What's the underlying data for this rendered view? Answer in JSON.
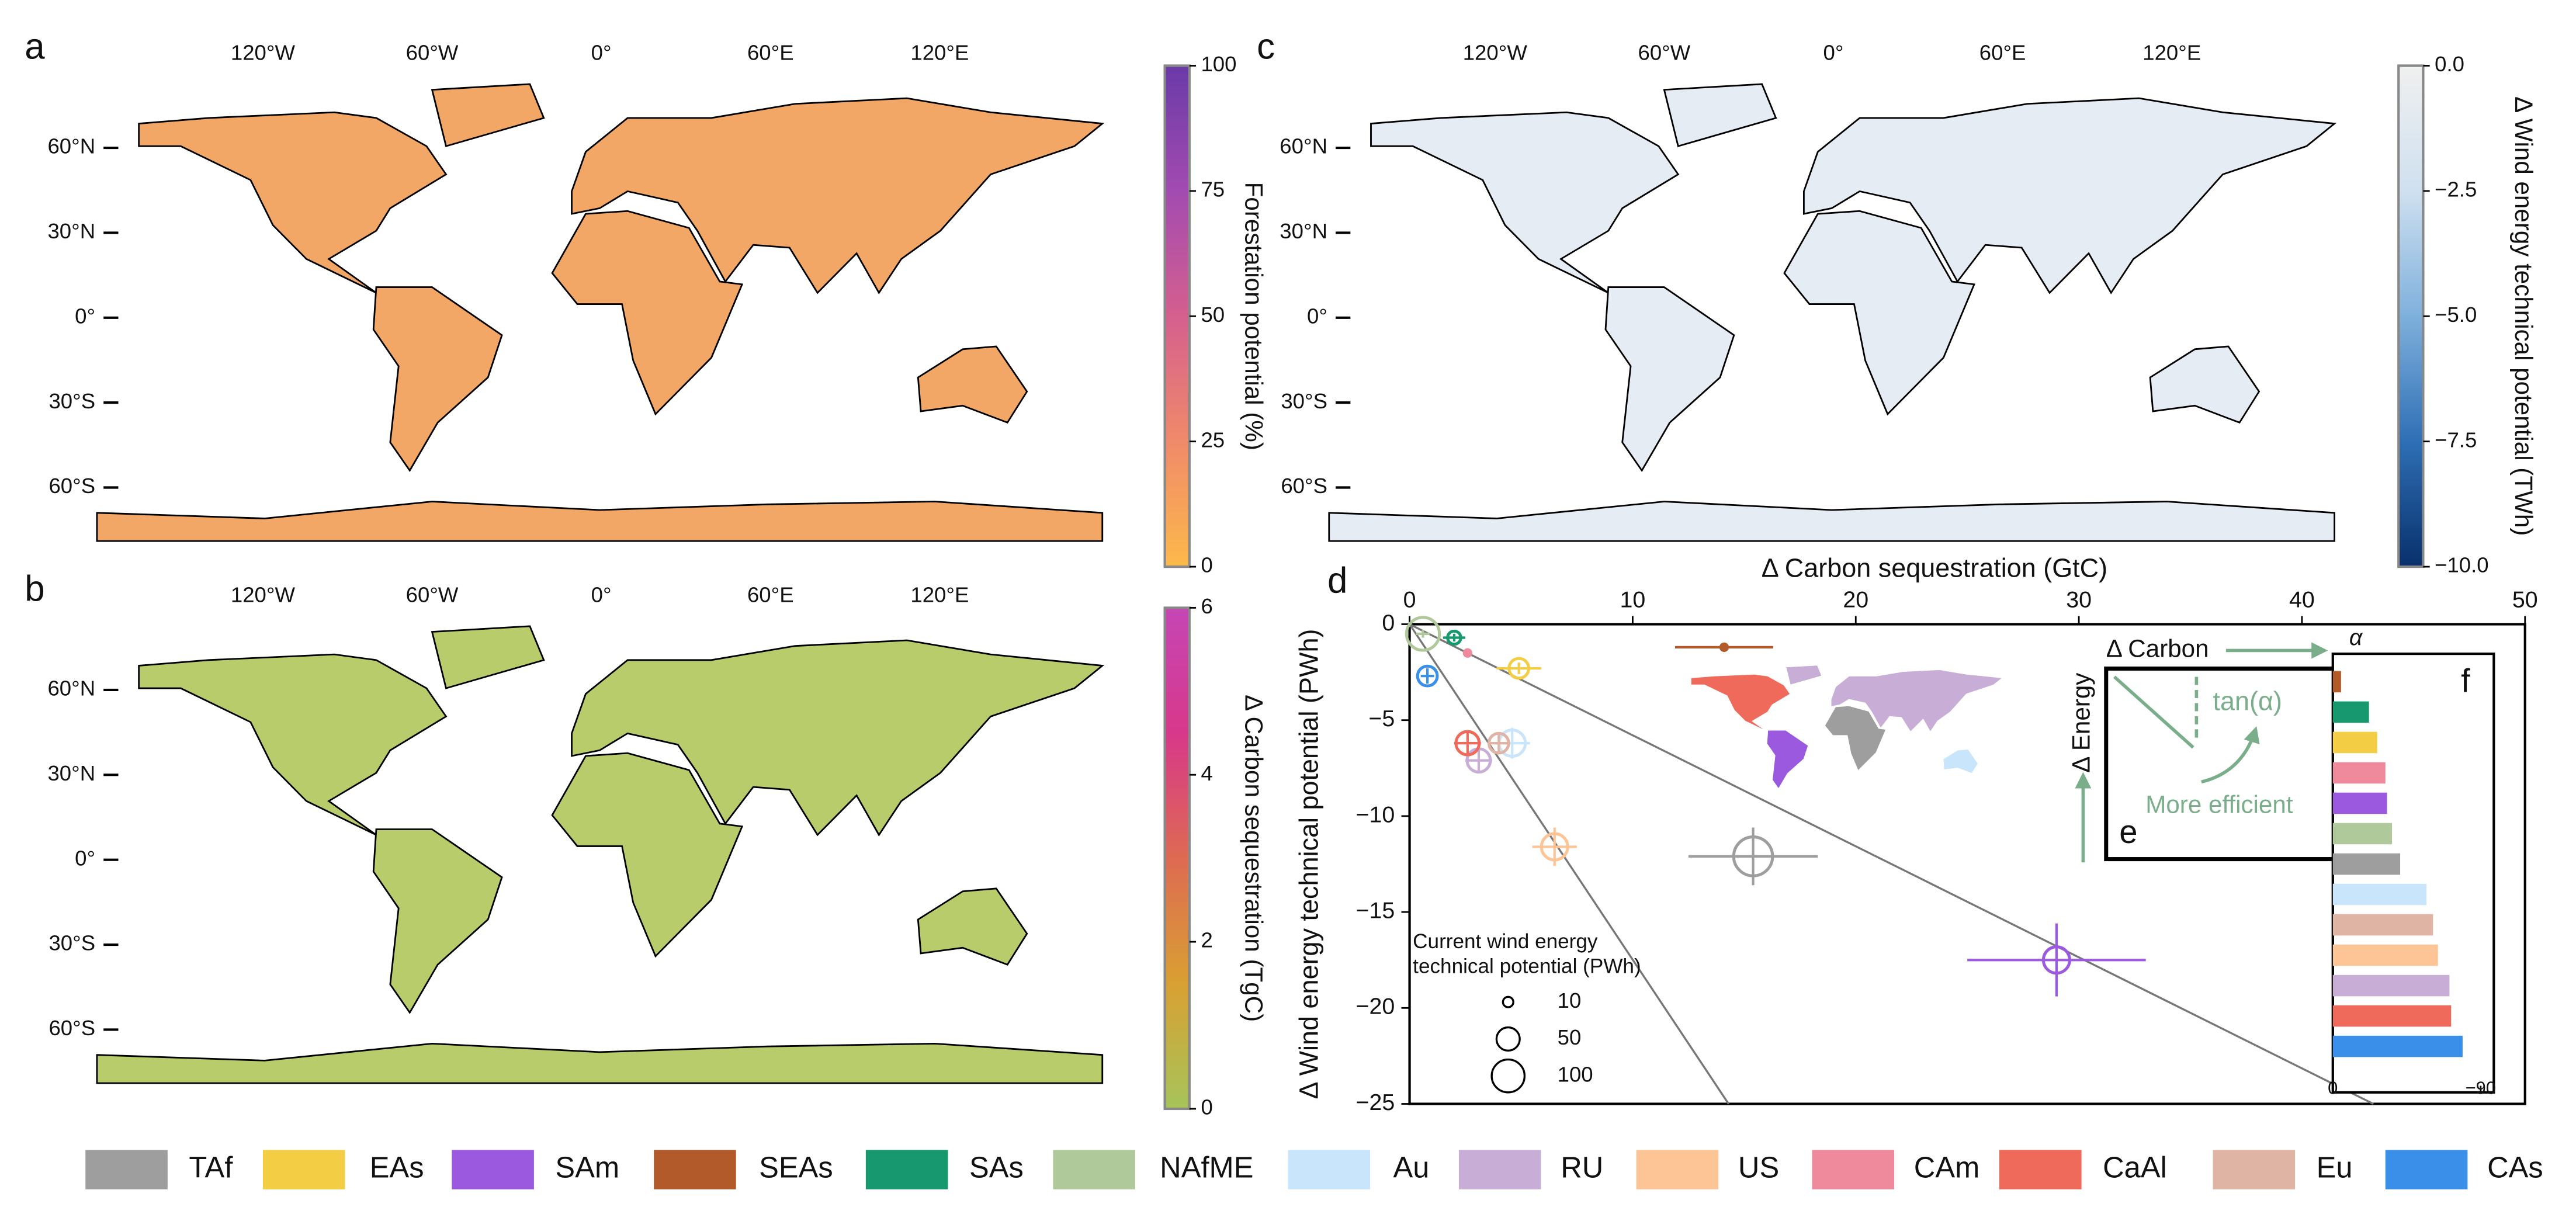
{
  "maps": [
    {
      "label": "a",
      "lon_ticks": [
        "120°W",
        "60°W",
        "0°",
        "60°E",
        "120°E"
      ],
      "lat_ticks": [
        "60°N",
        "30°N",
        "0°",
        "30°S",
        "60°S"
      ],
      "fill": "#f2a766",
      "colorbar": {
        "label": "Forestation potential (%)",
        "lim": [
          0,
          100
        ],
        "ticks": [
          0,
          25,
          50,
          75,
          100
        ],
        "colors": [
          "#fdb94a",
          "#f08a6a",
          "#d55f8e",
          "#a24bb0",
          "#6a3aa8"
        ]
      }
    },
    {
      "label": "b",
      "lon_ticks": [
        "120°W",
        "60°W",
        "0°",
        "60°E",
        "120°E"
      ],
      "lat_ticks": [
        "60°N",
        "30°N",
        "0°",
        "30°S",
        "60°S"
      ],
      "fill": "#b8cc6c",
      "colorbar": {
        "label": "Δ Carbon sequestration (TgC)",
        "lim": [
          0,
          6
        ],
        "ticks": [
          0,
          2,
          4,
          6
        ],
        "colors": [
          "#a6c45a",
          "#d9a032",
          "#de6a52",
          "#d8388a",
          "#c546b5"
        ]
      }
    },
    {
      "label": "c",
      "lon_ticks": [
        "120°W",
        "60°W",
        "0°",
        "60°E",
        "120°E"
      ],
      "lat_ticks": [
        "60°N",
        "30°N",
        "0°",
        "30°S",
        "60°S"
      ],
      "fill": "#e6ecf3",
      "colorbar": {
        "label": "Δ Wind energy technical potential (TWh)",
        "lim": [
          -10,
          0
        ],
        "ticks": [
          {
            "value": 0,
            "label": "0.0"
          },
          {
            "value": -2.5,
            "label": "−2.5"
          },
          {
            "value": -5,
            "label": "−5.0"
          },
          {
            "value": -7.5,
            "label": "−7.5"
          },
          {
            "value": -10,
            "label": "−10.0"
          }
        ],
        "colors": [
          "#08306b",
          "#2f6fb5",
          "#7fb0dc",
          "#cfe0f0",
          "#f0f0f0"
        ]
      }
    }
  ],
  "chart_data": [
    {
      "type": "scatter",
      "label": "d",
      "x_label": "Δ Carbon sequestration (GtC)",
      "y_label": "Δ Wind energy technical potential (PWh)",
      "xlim": [
        0,
        50
      ],
      "xticks": [
        0,
        10,
        20,
        30,
        40,
        50
      ],
      "ylim": [
        -25,
        0
      ],
      "yticks": [
        0,
        {
          "value": -5,
          "label": "−5"
        },
        {
          "value": -10,
          "label": "−10"
        },
        {
          "value": -15,
          "label": "−15"
        },
        {
          "value": -20,
          "label": "−20"
        },
        {
          "value": -25,
          "label": "−25"
        }
      ],
      "reference_lines": [
        {
          "x": [
            0,
            14.3
          ],
          "y": [
            0,
            -25
          ]
        },
        {
          "x": [
            0,
            43.2
          ],
          "y": [
            0,
            -25
          ]
        }
      ],
      "series": [
        {
          "name": "TAf",
          "color": "#9e9e9e",
          "x": [
            15.4
          ],
          "values": [
            -12.1
          ],
          "sizes": [
            140
          ],
          "xerr": [
            2.9
          ],
          "yerr": [
            1.5
          ]
        },
        {
          "name": "EAs",
          "color": "#f3cd44",
          "x": [
            4.9
          ],
          "values": [
            -2.3
          ],
          "sizes": [
            36
          ],
          "xerr": [
            1.0
          ],
          "yerr": [
            0.3
          ]
        },
        {
          "name": "SAm",
          "color": "#9b59e0",
          "x": [
            29.0
          ],
          "values": [
            -17.5
          ],
          "sizes": [
            64
          ],
          "xerr": [
            4.0
          ],
          "yerr": [
            1.9
          ]
        },
        {
          "name": "SEAs",
          "color": "#b35a2a",
          "x": [
            14.1
          ],
          "values": [
            -1.2
          ],
          "sizes": [
            4
          ],
          "xerr": [
            2.2
          ],
          "yerr": [
            0.1
          ]
        },
        {
          "name": "SAs",
          "color": "#17986e",
          "x": [
            2.0
          ],
          "values": [
            -0.7
          ],
          "sizes": [
            16
          ],
          "xerr": [
            0.5
          ],
          "yerr": [
            0.2
          ]
        },
        {
          "name": "NAfME",
          "color": "#b0c99a",
          "x": [
            0.6
          ],
          "values": [
            -0.5
          ],
          "sizes": [
            100
          ],
          "xerr": [
            0.3
          ],
          "yerr": [
            0.2
          ]
        },
        {
          "name": "Au",
          "color": "#c9e5fb",
          "x": [
            4.6
          ],
          "values": [
            -6.2
          ],
          "sizes": [
            64
          ],
          "xerr": [
            0.8
          ],
          "yerr": [
            0.8
          ]
        },
        {
          "name": "RU",
          "color": "#c8aed6",
          "x": [
            3.1
          ],
          "values": [
            -7.1
          ],
          "sizes": [
            50
          ],
          "xerr": [
            0.6
          ],
          "yerr": [
            0.6
          ]
        },
        {
          "name": "US",
          "color": "#fdc596",
          "x": [
            6.5
          ],
          "values": [
            -11.6
          ],
          "sizes": [
            64
          ],
          "xerr": [
            1.0
          ],
          "yerr": [
            1.0
          ]
        },
        {
          "name": "CAm",
          "color": "#ef8a9c",
          "x": [
            2.6
          ],
          "values": [
            -1.5
          ],
          "sizes": [
            4
          ],
          "xerr": [
            0.2
          ],
          "yerr": [
            0.1
          ]
        },
        {
          "name": "CaAl",
          "color": "#ef6a5a",
          "x": [
            2.6
          ],
          "values": [
            -6.2
          ],
          "sizes": [
            50
          ],
          "xerr": [
            0.6
          ],
          "yerr": [
            0.6
          ]
        },
        {
          "name": "Eu",
          "color": "#e0b4a4",
          "x": [
            4.0
          ],
          "values": [
            -6.2
          ],
          "sizes": [
            36
          ],
          "xerr": [
            0.5
          ],
          "yerr": [
            0.5
          ]
        },
        {
          "name": "CAs",
          "color": "#3a8fe8",
          "x": [
            0.8
          ],
          "values": [
            -2.7
          ],
          "sizes": [
            36
          ],
          "xerr": [
            0.3
          ],
          "yerr": [
            0.4
          ]
        }
      ],
      "size_legend": {
        "title_lines": [
          "Current wind energy",
          "technical potential (PWh)"
        ],
        "sizes": [
          10,
          50,
          100
        ]
      },
      "inset": {
        "label": "e",
        "x_label": "Δ Carbon",
        "y_label": "Δ Energy",
        "angle_label": "tan(α)",
        "note": "More efficient"
      }
    },
    {
      "type": "barh",
      "label": "f",
      "title": "α",
      "xlim": [
        0,
        -90
      ],
      "xticks": [
        0,
        {
          "value": -90,
          "label": "−90"
        }
      ],
      "values": [
        -5,
        -22,
        -27,
        -32,
        -33,
        -36,
        -41,
        -57,
        -61,
        -64,
        -71,
        -72,
        -79
      ],
      "colors": [
        "#b35a2a",
        "#17986e",
        "#f3cd44",
        "#ef8a9c",
        "#9b59e0",
        "#b0c99a",
        "#9e9e9e",
        "#c9e5fb",
        "#e0b4a4",
        "#fdc596",
        "#c8aed6",
        "#ef6a5a",
        "#3a8fe8"
      ]
    }
  ]
}
